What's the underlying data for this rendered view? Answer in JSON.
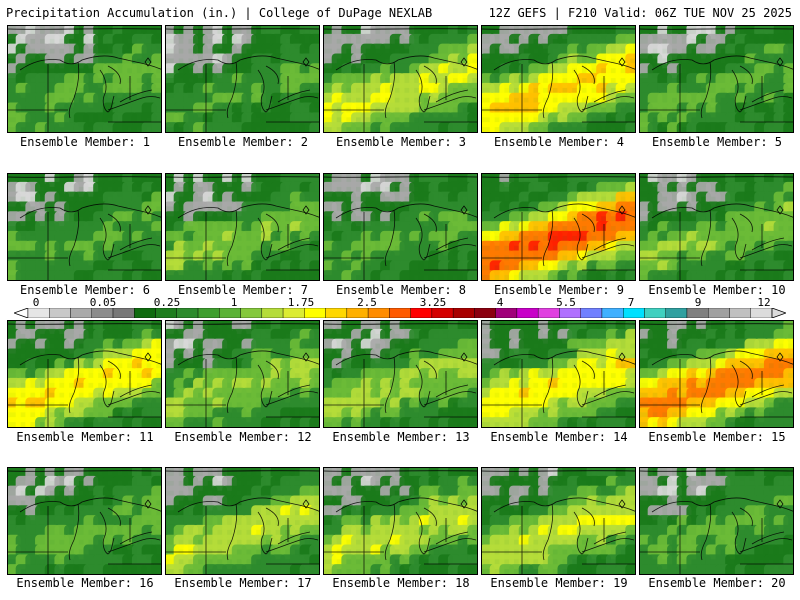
{
  "header": {
    "title_left": "Precipitation Accumulation (in.) | College of DuPage NEXLAB",
    "title_right": "12Z GEFS | F210 Valid: 06Z TUE NOV 25 2025"
  },
  "legend": {
    "tick_labels": [
      "0",
      "0.05",
      "0.25",
      "1",
      "1.75",
      "2.5",
      "3.25",
      "4",
      "5.5",
      "7",
      "9",
      "12"
    ],
    "bin_colors": [
      "#e6e6e6",
      "#c8c8c8",
      "#aaaaaa",
      "#8c8c8c",
      "#787878",
      "#0f6b0f",
      "#1e7d1e",
      "#2e8b2e",
      "#3f9f2f",
      "#5cb337",
      "#85c83c",
      "#b5dc3a",
      "#dcec32",
      "#ffff00",
      "#ffd700",
      "#ffb000",
      "#ff8c00",
      "#ff5a00",
      "#ff0000",
      "#d40000",
      "#a80000",
      "#8b0010",
      "#a0007a",
      "#c800c8",
      "#e040e0",
      "#b070ff",
      "#7080ff",
      "#40b0ff",
      "#00e0ff",
      "#40d0c0",
      "#30a0a0",
      "#808080",
      "#a0a0a0",
      "#c0c0c0",
      "#dcdcdc"
    ]
  },
  "members": [
    {
      "label": "Ensemble Member: 1",
      "wetness": 0.8
    },
    {
      "label": "Ensemble Member: 2",
      "wetness": 0.6
    },
    {
      "label": "Ensemble Member: 3",
      "wetness": 1.6
    },
    {
      "label": "Ensemble Member: 4",
      "wetness": 2.2
    },
    {
      "label": "Ensemble Member: 5",
      "wetness": 0.7
    },
    {
      "label": "Ensemble Member: 6",
      "wetness": 0.7
    },
    {
      "label": "Ensemble Member: 7",
      "wetness": 1.0
    },
    {
      "label": "Ensemble Member: 8",
      "wetness": 0.7
    },
    {
      "label": "Ensemble Member: 9",
      "wetness": 3.4
    },
    {
      "label": "Ensemble Member: 10",
      "wetness": 1.0
    },
    {
      "label": "Ensemble Member: 11",
      "wetness": 2.0
    },
    {
      "label": "Ensemble Member: 12",
      "wetness": 1.1
    },
    {
      "label": "Ensemble Member: 13",
      "wetness": 1.2
    },
    {
      "label": "Ensemble Member: 14",
      "wetness": 2.0
    },
    {
      "label": "Ensemble Member: 15",
      "wetness": 3.0
    },
    {
      "label": "Ensemble Member: 16",
      "wetness": 0.8
    },
    {
      "label": "Ensemble Member: 17",
      "wetness": 1.4
    },
    {
      "label": "Ensemble Member: 18",
      "wetness": 1.4
    },
    {
      "label": "Ensemble Member: 19",
      "wetness": 1.5
    },
    {
      "label": "Ensemble Member: 20",
      "wetness": 0.7
    }
  ]
}
